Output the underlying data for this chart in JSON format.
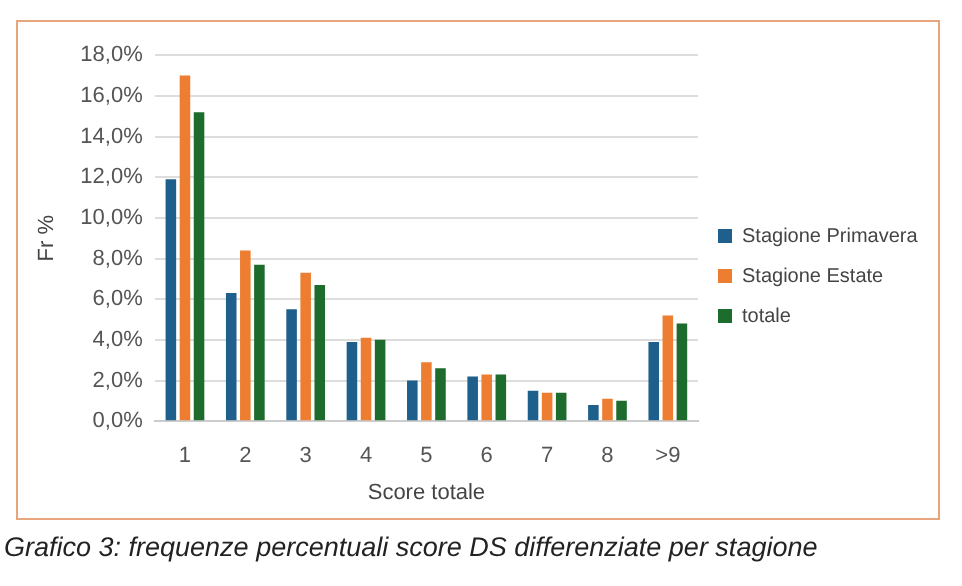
{
  "chart_data": {
    "type": "bar",
    "ylabel": "Fr %",
    "xlabel": "Score totale",
    "categories": [
      "1",
      "2",
      "3",
      "4",
      "5",
      "6",
      "7",
      "8",
      ">9"
    ],
    "series": [
      {
        "name": "Stagione Primavera",
        "color": "#1f5f8b",
        "values": [
          11.9,
          6.3,
          5.5,
          3.9,
          2.0,
          2.2,
          1.5,
          0.8,
          3.9
        ]
      },
      {
        "name": "Stagione Estate",
        "color": "#ed7d31",
        "values": [
          17.0,
          8.4,
          7.3,
          4.1,
          2.9,
          2.3,
          1.4,
          1.1,
          5.2
        ]
      },
      {
        "name": "totale",
        "color": "#1e6b2e",
        "values": [
          15.2,
          7.7,
          6.7,
          4.0,
          2.6,
          2.3,
          1.4,
          1.0,
          4.8
        ]
      }
    ],
    "ylim": [
      0,
      18
    ],
    "yticks": [
      {
        "value": 0,
        "label": "0,0%"
      },
      {
        "value": 2,
        "label": "2,0%"
      },
      {
        "value": 4,
        "label": "4,0%"
      },
      {
        "value": 6,
        "label": "6,0%"
      },
      {
        "value": 8,
        "label": "8,0%"
      },
      {
        "value": 10,
        "label": "10,0%"
      },
      {
        "value": 12,
        "label": "12,0%"
      },
      {
        "value": 14,
        "label": "14,0%"
      },
      {
        "value": 16,
        "label": "16,0%"
      },
      {
        "value": 18,
        "label": "18,0%"
      }
    ],
    "grid": "y",
    "legend": "right",
    "annotations": [
      "Grafico 3: frequenze percentuali score DS differenziate per stagione"
    ]
  }
}
